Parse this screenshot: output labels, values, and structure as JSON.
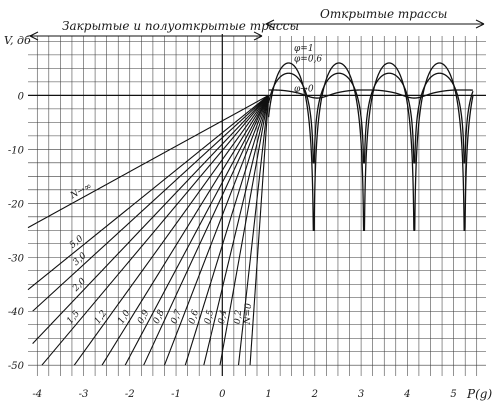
{
  "chart_data": {
    "type": "line",
    "ylabel": "V, дб",
    "xlabel": "P(g)",
    "xlim": [
      -4.2,
      5.7
    ],
    "ylim": [
      -52,
      11
    ],
    "grid": true,
    "x_ticks": [
      -4,
      -3,
      -2,
      -1,
      0,
      1,
      2,
      3,
      4,
      5
    ],
    "y_ticks": [
      0,
      -10,
      -20,
      -30,
      -40,
      -50
    ],
    "regions": [
      {
        "label": "Закрытые и полуоткрытые трассы"
      },
      {
        "label": "Открытые трассы"
      }
    ],
    "open_series": [
      {
        "name": "φ=1",
        "amplitude_db": 6.0,
        "phase": 1.0
      },
      {
        "name": "φ=0,6",
        "amplitude_db": 4.1,
        "phase": 0.6
      },
      {
        "name": "φ→0",
        "amplitude_db": 0.0,
        "phase": 0.0
      }
    ],
    "closed_series": [
      {
        "name": "N→∞",
        "x_at_bottom": -4.2,
        "y_at_bottom": -24.5
      },
      {
        "name": "5,0",
        "x_at_bottom": -4.2,
        "y_at_bottom": -36.0
      },
      {
        "name": "3,0",
        "x_at_bottom": -4.1,
        "y_at_bottom": -40.0
      },
      {
        "name": "2,0",
        "x_at_bottom": -4.1,
        "y_at_bottom": -46.0
      },
      {
        "name": "1,5",
        "x_at_bottom": -3.9,
        "y_at_bottom": -50.0
      },
      {
        "name": "1,2",
        "x_at_bottom": -3.2,
        "y_at_bottom": -50.0
      },
      {
        "name": "1,0",
        "x_at_bottom": -2.6,
        "y_at_bottom": -50.0
      },
      {
        "name": "0,9",
        "x_at_bottom": -2.1,
        "y_at_bottom": -50.0
      },
      {
        "name": "0,8",
        "x_at_bottom": -1.7,
        "y_at_bottom": -50.0
      },
      {
        "name": "0,7",
        "x_at_bottom": -1.25,
        "y_at_bottom": -50.0
      },
      {
        "name": "0,6",
        "x_at_bottom": -0.8,
        "y_at_bottom": -50.0
      },
      {
        "name": "0,5",
        "x_at_bottom": -0.4,
        "y_at_bottom": -50.0
      },
      {
        "name": "0,4",
        "x_at_bottom": -0.05,
        "y_at_bottom": -50.0
      },
      {
        "name": "0,2",
        "x_at_bottom": 0.35,
        "y_at_bottom": -50.0
      },
      {
        "name": "N=0",
        "x_at_bottom": 0.6,
        "y_at_bottom": -50.0
      }
    ],
    "convergence_point": {
      "x": 1.0,
      "y": 0.0
    }
  }
}
